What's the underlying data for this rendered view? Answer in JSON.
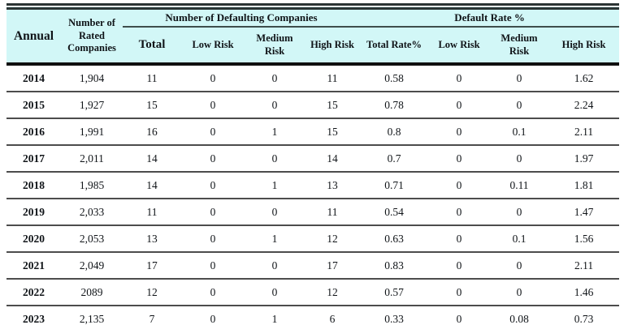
{
  "table": {
    "header": {
      "annual": "Annual",
      "rated_companies": "Number of Rated Companies",
      "group_defaulting": "Number of Defaulting Companies",
      "group_default_rate": "Default Rate %",
      "sub_columns": {
        "total": "Total",
        "low_risk_count": "Low Risk",
        "medium_risk_count": "Medium Risk",
        "high_risk_count": "High Risk",
        "total_rate": "Total Rate%",
        "low_risk_rate": "Low Risk",
        "medium_risk_rate": "Medium Risk",
        "high_risk_rate": "High Risk"
      }
    },
    "rows": [
      {
        "year": "2014",
        "rated": "1,904",
        "values": [
          "11",
          "0",
          "0",
          "11",
          "0.58",
          "0",
          "0",
          "1.62"
        ]
      },
      {
        "year": "2015",
        "rated": "1,927",
        "values": [
          "15",
          "0",
          "0",
          "15",
          "0.78",
          "0",
          "0",
          "2.24"
        ]
      },
      {
        "year": "2016",
        "rated": "1,991",
        "values": [
          "16",
          "0",
          "1",
          "15",
          "0.8",
          "0",
          "0.1",
          "2.11"
        ]
      },
      {
        "year": "2017",
        "rated": "2,011",
        "values": [
          "14",
          "0",
          "0",
          "14",
          "0.7",
          "0",
          "0",
          "1.97"
        ]
      },
      {
        "year": "2018",
        "rated": "1,985",
        "values": [
          "14",
          "0",
          "1",
          "13",
          "0.71",
          "0",
          "0.11",
          "1.81"
        ]
      },
      {
        "year": "2019",
        "rated": "2,033",
        "values": [
          "11",
          "0",
          "0",
          "11",
          "0.54",
          "0",
          "0",
          "1.47"
        ]
      },
      {
        "year": "2020",
        "rated": "2,053",
        "values": [
          "13",
          "0",
          "1",
          "12",
          "0.63",
          "0",
          "0.1",
          "1.56"
        ]
      },
      {
        "year": "2021",
        "rated": "2,049",
        "values": [
          "17",
          "0",
          "0",
          "17",
          "0.83",
          "0",
          "0",
          "2.11"
        ]
      },
      {
        "year": "2022",
        "rated": "2089",
        "values": [
          "12",
          "0",
          "0",
          "12",
          "0.57",
          "0",
          "0",
          "1.46"
        ]
      },
      {
        "year": "2023",
        "rated": "2,135",
        "values": [
          "7",
          "0",
          "1",
          "6",
          "0.33",
          "0",
          "0.08",
          "0.73"
        ]
      }
    ]
  },
  "colors": {
    "header_background": "#d2f7f7",
    "text": "#101418",
    "thick_rule": "#101010",
    "row_separator": "#4c4c4c",
    "outer_double_rule": "#2b3434"
  }
}
